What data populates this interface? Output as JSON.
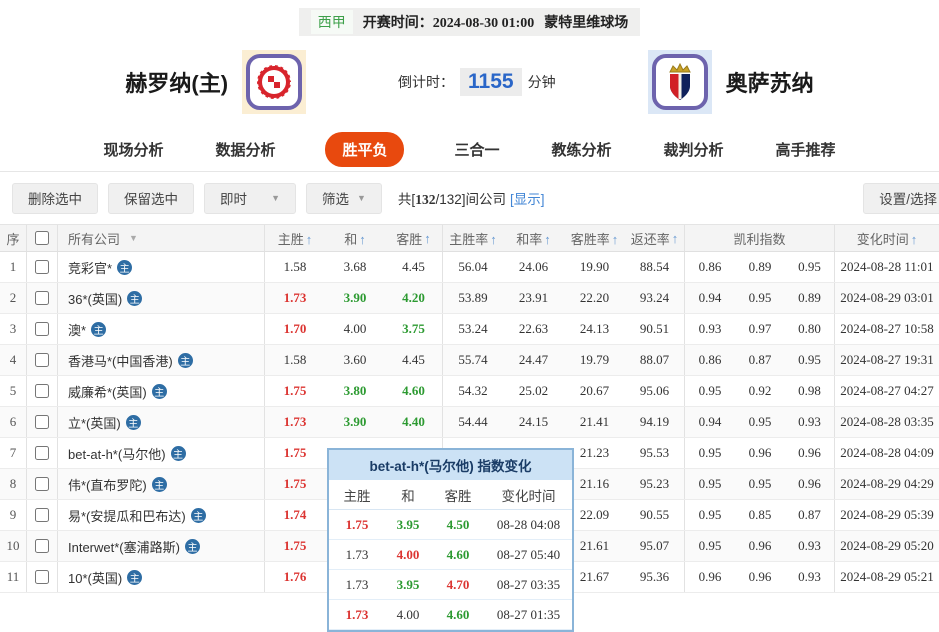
{
  "accent": {
    "red": "#dc3532",
    "green": "#2c9a31",
    "link_blue": "#4185d5",
    "active_tab": "#e8490e",
    "countdown_blue": "#2a66c8",
    "league_green": "#3da04a",
    "sort_arrow_blue": "#6b9bd2"
  },
  "topbar": {
    "league": "西甲",
    "kickoff_label": "开赛时间：",
    "kickoff_time": "2024-08-30 01:00",
    "venue": "蒙特里维球场"
  },
  "teams": {
    "home_name": "赫罗纳(主)",
    "away_name": "奥萨苏纳",
    "home_logo": "girona-crest",
    "away_logo": "osasuna-crest",
    "countdown_label": "倒计时：",
    "countdown_value": "1155",
    "countdown_unit": "分钟"
  },
  "nav": {
    "tabs": [
      {
        "label": "现场分析",
        "active": false
      },
      {
        "label": "数据分析",
        "active": false
      },
      {
        "label": "胜平负",
        "active": true
      },
      {
        "label": "三合一",
        "active": false
      },
      {
        "label": "教练分析",
        "active": false
      },
      {
        "label": "裁判分析",
        "active": false
      },
      {
        "label": "高手推荐",
        "active": false
      }
    ]
  },
  "toolbar": {
    "delete_btn": "删除选中",
    "keep_btn": "保留选中",
    "instant_dropdown": "即时",
    "filter_dropdown": "筛选",
    "caret": "▼",
    "count_prefix": "共[",
    "count_bold": "132",
    "count_suffix": "/132]间公司",
    "show_link": "[显示]",
    "settings_btn": "设置/选择"
  },
  "table": {
    "headers": {
      "seq": "序",
      "company": "所有公司",
      "odds": [
        "主胜",
        "和",
        "客胜"
      ],
      "rates": [
        "主胜率",
        "和率",
        "客胜率",
        "返还率"
      ],
      "kelly": "凯利指数",
      "time": "变化时间",
      "sort_arrow": "↑",
      "dropdown_arrow": "▼"
    },
    "home_badge": "主",
    "rows": [
      {
        "seq": "1",
        "company": "竞彩官*",
        "odds": [
          "1.58",
          "3.68",
          "4.45"
        ],
        "oc": [
          "black",
          "black",
          "black"
        ],
        "rates": [
          "56.04",
          "24.06",
          "19.90",
          "88.54"
        ],
        "kelly": [
          "0.86",
          "0.89",
          "0.95"
        ],
        "time": "2024-08-28 11:01"
      },
      {
        "seq": "2",
        "company": "36*(英国)",
        "odds": [
          "1.73",
          "3.90",
          "4.20"
        ],
        "oc": [
          "red",
          "green",
          "green"
        ],
        "rates": [
          "53.89",
          "23.91",
          "22.20",
          "93.24"
        ],
        "kelly": [
          "0.94",
          "0.95",
          "0.89"
        ],
        "time": "2024-08-29 03:01"
      },
      {
        "seq": "3",
        "company": "澳*",
        "odds": [
          "1.70",
          "4.00",
          "3.75"
        ],
        "oc": [
          "red",
          "black",
          "green"
        ],
        "rates": [
          "53.24",
          "22.63",
          "24.13",
          "90.51"
        ],
        "kelly": [
          "0.93",
          "0.97",
          "0.80"
        ],
        "time": "2024-08-27 10:58"
      },
      {
        "seq": "4",
        "company": "香港马*(中国香港)",
        "odds": [
          "1.58",
          "3.60",
          "4.45"
        ],
        "oc": [
          "black",
          "black",
          "black"
        ],
        "rates": [
          "55.74",
          "24.47",
          "19.79",
          "88.07"
        ],
        "kelly": [
          "0.86",
          "0.87",
          "0.95"
        ],
        "time": "2024-08-27 19:31"
      },
      {
        "seq": "5",
        "company": "威廉希*(英国)",
        "odds": [
          "1.75",
          "3.80",
          "4.60"
        ],
        "oc": [
          "red",
          "green",
          "green"
        ],
        "rates": [
          "54.32",
          "25.02",
          "20.67",
          "95.06"
        ],
        "kelly": [
          "0.95",
          "0.92",
          "0.98"
        ],
        "time": "2024-08-27 04:27"
      },
      {
        "seq": "6",
        "company": "立*(英国)",
        "odds": [
          "1.73",
          "3.90",
          "4.40"
        ],
        "oc": [
          "red",
          "green",
          "green"
        ],
        "rates": [
          "54.44",
          "24.15",
          "21.41",
          "94.19"
        ],
        "kelly": [
          "0.94",
          "0.95",
          "0.93"
        ],
        "time": "2024-08-28 03:35"
      },
      {
        "seq": "7",
        "company": "bet-at-h*(马尔他)",
        "odds": [
          "1.75",
          "",
          ""
        ],
        "oc": [
          "red",
          "black",
          "black"
        ],
        "rates": [
          "",
          "",
          "21.23",
          "95.53"
        ],
        "kelly": [
          "0.95",
          "0.96",
          "0.96"
        ],
        "time": "2024-08-28 04:09"
      },
      {
        "seq": "8",
        "company": "伟*(直布罗陀)",
        "odds": [
          "1.75",
          "",
          ""
        ],
        "oc": [
          "red",
          "black",
          "black"
        ],
        "rates": [
          "",
          "",
          "21.16",
          "95.23"
        ],
        "kelly": [
          "0.95",
          "0.95",
          "0.96"
        ],
        "time": "2024-08-29 04:29"
      },
      {
        "seq": "9",
        "company": "易*(安提瓜和巴布达)",
        "odds": [
          "1.74",
          "",
          ""
        ],
        "oc": [
          "red",
          "black",
          "black"
        ],
        "rates": [
          "",
          "",
          "22.09",
          "90.55"
        ],
        "kelly": [
          "0.95",
          "0.85",
          "0.87"
        ],
        "time": "2024-08-29 05:39"
      },
      {
        "seq": "10",
        "company": "Interwet*(塞浦路斯)",
        "odds": [
          "1.75",
          "",
          ""
        ],
        "oc": [
          "red",
          "black",
          "black"
        ],
        "rates": [
          "",
          "",
          "21.61",
          "95.07"
        ],
        "kelly": [
          "0.95",
          "0.96",
          "0.93"
        ],
        "time": "2024-08-29 05:20"
      },
      {
        "seq": "11",
        "company": "10*(英国)",
        "odds": [
          "1.76",
          "",
          ""
        ],
        "oc": [
          "red",
          "black",
          "black"
        ],
        "rates": [
          "",
          "",
          "21.67",
          "95.36"
        ],
        "kelly": [
          "0.96",
          "0.96",
          "0.93"
        ],
        "time": "2024-08-29 05:21"
      }
    ]
  },
  "popup": {
    "title": "bet-at-h*(马尔他) 指数变化",
    "headers": [
      "主胜",
      "和",
      "客胜",
      "变化时间"
    ],
    "rows": [
      {
        "odds": [
          "1.75",
          "3.95",
          "4.50"
        ],
        "oc": [
          "red",
          "green",
          "green"
        ],
        "time": "08-28 04:08"
      },
      {
        "odds": [
          "1.73",
          "4.00",
          "4.60"
        ],
        "oc": [
          "black",
          "red",
          "green"
        ],
        "time": "08-27 05:40"
      },
      {
        "odds": [
          "1.73",
          "3.95",
          "4.70"
        ],
        "oc": [
          "black",
          "green",
          "red"
        ],
        "time": "08-27 03:35"
      },
      {
        "odds": [
          "1.73",
          "4.00",
          "4.60"
        ],
        "oc": [
          "red",
          "black",
          "green"
        ],
        "time": "08-27 01:35"
      }
    ]
  }
}
